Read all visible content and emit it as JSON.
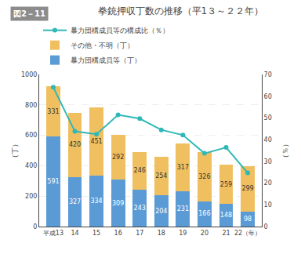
{
  "chart_data": {
    "type": "bar",
    "title": "拳銃押収丁数の推移（平1３～２２年）",
    "annotations": [
      "図2－11"
    ],
    "ylabel": "（丁）",
    "y2label": "（％）",
    "categories": [
      "平成13",
      "14",
      "15",
      "16",
      "17",
      "18",
      "19",
      "20",
      "21",
      "22（年）"
    ],
    "series": [
      {
        "name": "暴力団構成員等（丁）",
        "type": "bar",
        "color": "#5b9bd5",
        "data_labels": true,
        "values": [
          591,
          327,
          334,
          309,
          243,
          204,
          231,
          166,
          148,
          98
        ]
      },
      {
        "name": "その他・不明（丁）",
        "type": "bar",
        "color": "#f0c060",
        "data_labels": true,
        "values": [
          331,
          420,
          451,
          292,
          246,
          254,
          317,
          326,
          259,
          299
        ]
      },
      {
        "name": "暴力団構成員等の構成比（％）",
        "type": "line",
        "color": "#30b8b8",
        "marker": "circle",
        "axis": "y2",
        "values": [
          64.1,
          43.8,
          42.5,
          51.4,
          49.7,
          44.5,
          42.1,
          33.7,
          36.4,
          24.7
        ]
      }
    ],
    "stacked": true,
    "ylim": [
      0,
      1000
    ],
    "yticks": [
      0,
      200,
      400,
      600,
      800,
      1000
    ],
    "y2lim": [
      0,
      70
    ],
    "y2ticks": [
      0,
      10,
      20,
      30,
      40,
      50,
      60,
      70
    ],
    "grid": true,
    "legend": "top"
  }
}
